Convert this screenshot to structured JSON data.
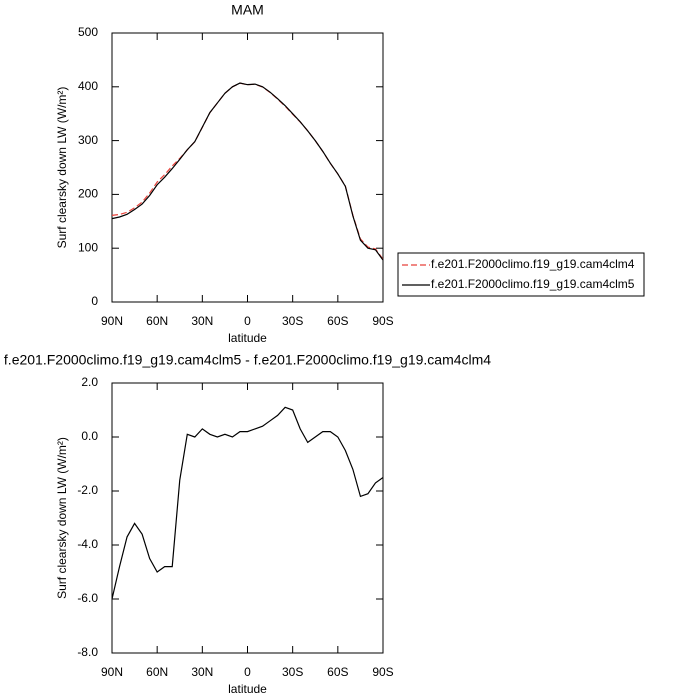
{
  "chart_data": [
    {
      "type": "line",
      "title": "MAM",
      "xlabel": "latitude",
      "ylabel": "Surf clearsky down LW (W/m²)",
      "x": [
        90,
        85,
        80,
        75,
        70,
        65,
        60,
        55,
        50,
        45,
        40,
        35,
        30,
        25,
        20,
        15,
        10,
        5,
        0,
        -5,
        -10,
        -15,
        -20,
        -25,
        -30,
        -35,
        -40,
        -45,
        -50,
        -55,
        -60,
        -65,
        -70,
        -75,
        -80,
        -85,
        -90
      ],
      "xlim": [
        90,
        -90
      ],
      "xticks": [
        {
          "value": 90,
          "label": "90N"
        },
        {
          "value": 60,
          "label": "60N"
        },
        {
          "value": 30,
          "label": "30N"
        },
        0,
        {
          "value": -30,
          "label": "30S"
        },
        {
          "value": -60,
          "label": "60S"
        },
        {
          "value": -90,
          "label": "90S"
        }
      ],
      "ylim": [
        0,
        500
      ],
      "yticks": [
        0,
        100,
        200,
        300,
        400,
        500
      ],
      "legend": "right",
      "series": [
        {
          "name": "f.e201.F2000climo.f19_g19.cam4clm4",
          "color": "#e8423a",
          "style": "dashed",
          "values": [
            161,
            162.8,
            166.7,
            175.2,
            185.6,
            202.5,
            223,
            236.8,
            252.8,
            266.8,
            282.9,
            298,
            324.7,
            351.9,
            370,
            387.9,
            400,
            406.8,
            403.8,
            404.7,
            399.6,
            389.4,
            377.2,
            363.9,
            349,
            334.7,
            318.2,
            300,
            279.8,
            257.8,
            238,
            215.5,
            161.2,
            117.2,
            102.1,
            98.7,
            79.5
          ]
        },
        {
          "name": "f.e201.F2000climo.f19_g19.cam4clm5",
          "color": "#000000",
          "style": "solid",
          "values": [
            155,
            158,
            163,
            172,
            182,
            198,
            218,
            232,
            248,
            265,
            283,
            298,
            325,
            352,
            370,
            388,
            400,
            407,
            404,
            405,
            400,
            390,
            378,
            365,
            350,
            335,
            318,
            300,
            280,
            258,
            238,
            215,
            160,
            115,
            100,
            97,
            78
          ]
        }
      ]
    },
    {
      "type": "line",
      "title": "f.e201.F2000climo.f19_g19.cam4clm5 - f.e201.F2000climo.f19_g19.cam4clm4",
      "xlabel": "latitude",
      "ylabel": "Surf clearsky down LW (W/m²)",
      "x": [
        90,
        85,
        80,
        75,
        70,
        65,
        60,
        55,
        50,
        45,
        40,
        35,
        30,
        25,
        20,
        15,
        10,
        5,
        0,
        -5,
        -10,
        -15,
        -20,
        -25,
        -30,
        -35,
        -40,
        -45,
        -50,
        -55,
        -60,
        -65,
        -70,
        -75,
        -80,
        -85,
        -90
      ],
      "xlim": [
        90,
        -90
      ],
      "xticks": [
        {
          "value": 90,
          "label": "90N"
        },
        {
          "value": 60,
          "label": "60N"
        },
        {
          "value": 30,
          "label": "30N"
        },
        0,
        {
          "value": -30,
          "label": "30S"
        },
        {
          "value": -60,
          "label": "60S"
        },
        {
          "value": -90,
          "label": "90S"
        }
      ],
      "ylim": [
        -8,
        2
      ],
      "yticks": [
        {
          "value": -8,
          "label": "-8.0"
        },
        {
          "value": -6,
          "label": "-6.0"
        },
        {
          "value": -4,
          "label": "-4.0"
        },
        {
          "value": -2,
          "label": "-2.0"
        },
        {
          "value": 0,
          "label": "0.0"
        },
        {
          "value": 2,
          "label": "2.0"
        }
      ],
      "series": [
        {
          "color": "#000000",
          "style": "solid",
          "values": [
            -6.0,
            -4.8,
            -3.7,
            -3.2,
            -3.6,
            -4.5,
            -5.0,
            -4.8,
            -4.8,
            -1.6,
            0.1,
            0.0,
            0.3,
            0.1,
            0.0,
            0.1,
            0.0,
            0.2,
            0.2,
            0.3,
            0.4,
            0.6,
            0.8,
            1.1,
            1.0,
            0.3,
            -0.2,
            0.0,
            0.2,
            0.2,
            0.0,
            -0.5,
            -1.2,
            -2.2,
            -2.1,
            -1.7,
            -1.5
          ]
        }
      ]
    }
  ]
}
